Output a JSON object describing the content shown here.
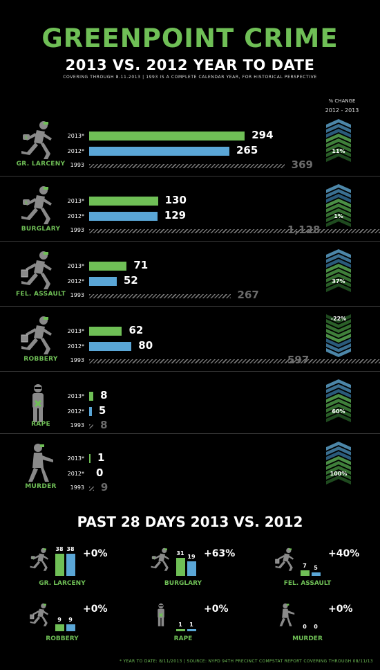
{
  "title": "GREENPOINT CRIME",
  "subtitle": "2013 VS. 2012 YEAR TO DATE",
  "note": "COVERING THROUGH 8.11.2013 | 1993 IS A COMPLETE CALENDAR YEAR, FOR HISTORICAL PERSPECTIVE",
  "pct_header": {
    "title": "% CHANGE",
    "range": "2012 - 2013"
  },
  "year_labels": {
    "y2013": "2013*",
    "y2012": "2012*",
    "y1993": "1993"
  },
  "colors": {
    "green": "#6fbf56",
    "blue": "#5aa6d6",
    "gray": "#6b6b6b",
    "background": "#000000"
  },
  "chart_data": [
    {
      "type": "bar",
      "title": "2013 VS. 2012 YEAR TO DATE",
      "categories": [
        "GR. LARCENY",
        "BURGLARY",
        "FEL. ASSAULT",
        "ROBBERY",
        "RAPE",
        "MURDER"
      ],
      "series": [
        {
          "name": "2013*",
          "values": [
            294,
            130,
            71,
            62,
            8,
            1
          ]
        },
        {
          "name": "2012*",
          "values": [
            265,
            129,
            52,
            80,
            5,
            0
          ]
        },
        {
          "name": "1993",
          "values": [
            369,
            1128,
            267,
            597,
            8,
            9
          ]
        }
      ],
      "value_labels_1993": [
        "369",
        "1,128",
        "267",
        "597",
        "8",
        "9"
      ],
      "pct_change": [
        "11%",
        "1%",
        "37%",
        "-22%",
        "60%",
        "100%"
      ],
      "icons": [
        "running-thief-icon",
        "running-thief-icon",
        "attacker-icon",
        "purse-snatcher-icon",
        "standing-man-icon",
        "gunman-icon"
      ]
    },
    {
      "type": "bar",
      "title": "PAST 28 DAYS 2013 VS. 2012",
      "categories": [
        "GR. LARCENY",
        "BURGLARY",
        "FEL. ASSAULT",
        "ROBBERY",
        "RAPE",
        "MURDER"
      ],
      "series": [
        {
          "values": [
            38,
            31,
            7,
            9,
            1,
            0
          ]
        },
        {
          "values": [
            38,
            19,
            5,
            9,
            1,
            0
          ]
        }
      ],
      "pct_change": [
        "+0%",
        "+63%",
        "+40%",
        "+0%",
        "+0%",
        "+0%"
      ]
    }
  ],
  "footer": "* YEAR TO DATE: 8/11/2013  |  SOURCE: NYPD 94TH PRECINCT COMPSTAT REPORT COVERING THROUGH 08/11/13"
}
